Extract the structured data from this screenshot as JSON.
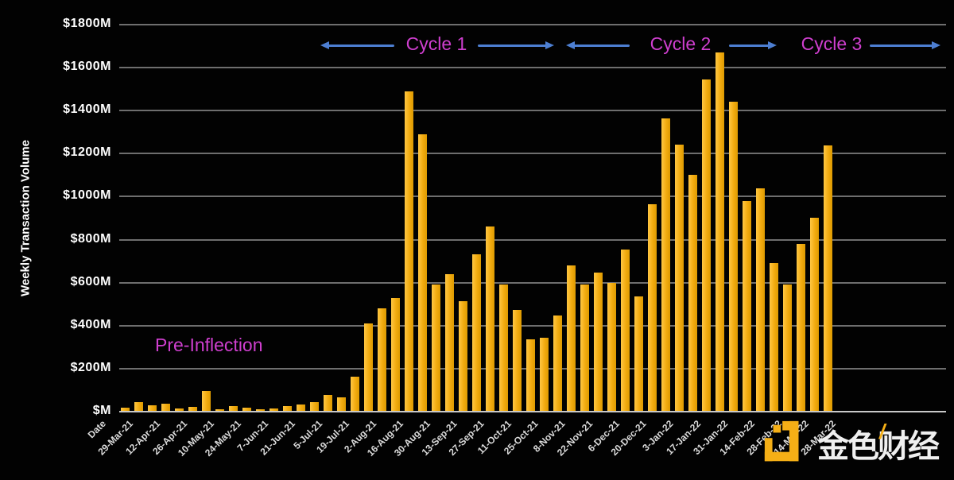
{
  "y_axis": {
    "title": "Weekly Transaction Volume",
    "tick_labels": [
      "$M",
      "$200M",
      "$400M",
      "$600M",
      "$800M",
      "$1000M",
      "$1200M",
      "$1400M",
      "$1600M",
      "$1800M"
    ]
  },
  "x_axis": {
    "leading_label": "Date",
    "shown_tick_labels": [
      "29-Mar-21",
      "12-Apr-21",
      "26-Apr-21",
      "10-May-21",
      "24-May-21",
      "7-Jun-21",
      "21-Jun-21",
      "5-Jul-21",
      "19-Jul-21",
      "2-Aug-21",
      "16-Aug-21",
      "30-Aug-21",
      "13-Sep-21",
      "27-Sep-21",
      "11-Oct-21",
      "25-Oct-21",
      "8-Nov-21",
      "22-Nov-21",
      "6-Dec-21",
      "20-Dec-21",
      "3-Jan-22",
      "17-Jan-22",
      "31-Jan-22",
      "14-Feb-22",
      "28-Feb-22",
      "14-Mar-22",
      "28-Mar-22"
    ]
  },
  "annotations": {
    "pre_inflection": "Pre-Inflection",
    "cycle1": "Cycle 1",
    "cycle2": "Cycle 2",
    "cycle3": "Cycle 3"
  },
  "watermark": {
    "text": "金色财经",
    "accent": "/"
  },
  "colors": {
    "background": "#020202",
    "bar_light": "#ffc743",
    "bar_mid": "#f2ab10",
    "bar_dark": "#dd9a00",
    "grid": "#6e6e6e",
    "axis_baseline": "#c9c9c9",
    "magenta": "#cf3fcf",
    "arrow_blue": "#4d7fd2",
    "y_label": "#ffffff",
    "x_label": "#dcdcdc",
    "watermark_text": "#efefef",
    "watermark_gold": "#f5af16"
  },
  "chart_data": {
    "type": "bar",
    "title": "",
    "ylabel": "Weekly Transaction Volume",
    "xlabel": "Date",
    "ylim": [
      0,
      1800
    ],
    "ytick_step": 200,
    "grid": true,
    "legend": false,
    "units": "USD millions",
    "categories": [
      "29-Mar-21",
      "5-Apr-21",
      "12-Apr-21",
      "19-Apr-21",
      "26-Apr-21",
      "3-May-21",
      "10-May-21",
      "17-May-21",
      "24-May-21",
      "31-May-21",
      "7-Jun-21",
      "14-Jun-21",
      "21-Jun-21",
      "28-Jun-21",
      "5-Jul-21",
      "12-Jul-21",
      "19-Jul-21",
      "26-Jul-21",
      "2-Aug-21",
      "9-Aug-21",
      "16-Aug-21",
      "23-Aug-21",
      "30-Aug-21",
      "6-Sep-21",
      "13-Sep-21",
      "20-Sep-21",
      "27-Sep-21",
      "4-Oct-21",
      "11-Oct-21",
      "18-Oct-21",
      "25-Oct-21",
      "1-Nov-21",
      "8-Nov-21",
      "15-Nov-21",
      "22-Nov-21",
      "29-Nov-21",
      "6-Dec-21",
      "13-Dec-21",
      "20-Dec-21",
      "27-Dec-21",
      "3-Jan-22",
      "10-Jan-22",
      "17-Jan-22",
      "24-Jan-22",
      "31-Jan-22",
      "7-Feb-22",
      "14-Feb-22",
      "21-Feb-22",
      "28-Feb-22",
      "7-Mar-22",
      "14-Mar-22",
      "21-Mar-22",
      "28-Mar-22"
    ],
    "values": [
      20,
      45,
      30,
      38,
      15,
      22,
      95,
      12,
      25,
      20,
      10,
      16,
      25,
      32,
      45,
      78,
      66,
      162,
      410,
      480,
      530,
      1490,
      1290,
      590,
      640,
      515,
      730,
      860,
      590,
      472,
      335,
      345,
      447,
      680,
      590,
      646,
      598,
      753,
      535,
      963,
      1365,
      1243,
      1103,
      1545,
      1670,
      1440,
      980,
      1040,
      690,
      590,
      780,
      900,
      1240
    ],
    "annotations": [
      {
        "label": "Pre-Inflection",
        "range": "29-Mar-21 to mid-Jul-21"
      },
      {
        "label": "Cycle 1",
        "range": "Jul-21 to Oct-21"
      },
      {
        "label": "Cycle 2",
        "range": "Nov-21 to Feb-22"
      },
      {
        "label": "Cycle 3",
        "range": "Mar-22 onward"
      }
    ]
  }
}
